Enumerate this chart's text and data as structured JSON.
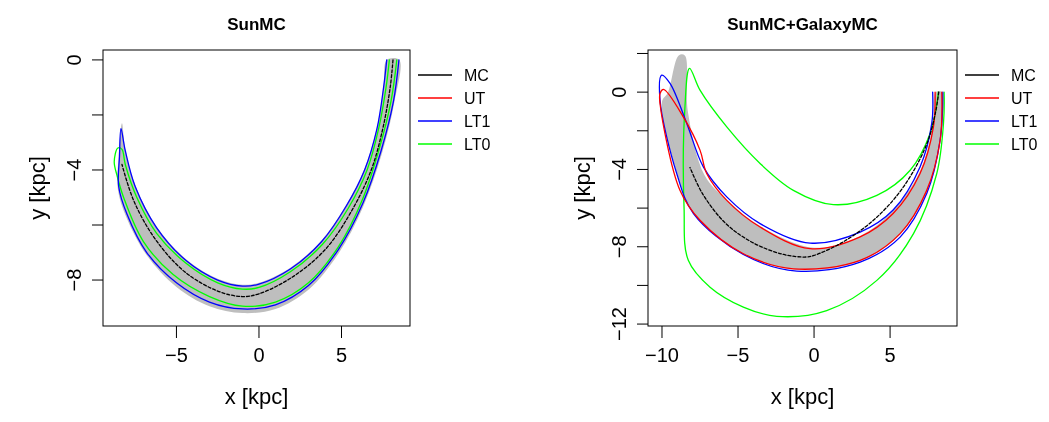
{
  "chart_data": [
    {
      "type": "line",
      "title": "SunMC",
      "xlabel": "x [kpc]",
      "ylabel": "y [kpc]",
      "xlim": [
        -9.45,
        9.15
      ],
      "ylim": [
        -9.67,
        0.36
      ],
      "xticks": [
        -5,
        0,
        5
      ],
      "yticks": [
        0,
        {
          "value": -2,
          "label": null
        },
        -4,
        {
          "value": -6,
          "label": null
        },
        -8
      ],
      "legend": "top right",
      "series": [
        {
          "type": "area",
          "color": "#bebebe",
          "x": [
            7.74,
            7.55,
            7.15,
            6.4,
            5.3,
            3.8,
            1.9,
            0,
            -1,
            -2.5,
            -4.4,
            -6.2,
            -7.5,
            -8.1,
            -8.3,
            -8.5,
            -8.55,
            -8.05,
            -6.8,
            -5.0,
            -3,
            -1,
            1,
            3,
            4.8,
            6.3,
            7.45,
            8.2,
            8.5
          ],
          "values": [
            0,
            -0.95,
            -2.45,
            -3.95,
            -5.25,
            -6.55,
            -7.55,
            -8.1,
            -8.17,
            -7.95,
            -7.25,
            -6.05,
            -4.55,
            -3.25,
            -2.3,
            -3.5,
            -4.7,
            -5.7,
            -7.1,
            -8.25,
            -8.95,
            -9.2,
            -9.05,
            -8.35,
            -7.05,
            -5.35,
            -3.4,
            -1.55,
            0
          ]
        },
        {
          "name": "MC",
          "color": "#000000",
          "line_style": "dashed",
          "x": [
            8.12,
            7.95,
            7.5,
            6.8,
            5.6,
            4,
            2,
            0,
            -1,
            -2.5,
            -4.5,
            -6.3,
            -7.6,
            -8.3
          ],
          "values": [
            0,
            -1,
            -2.5,
            -4,
            -5.5,
            -6.9,
            -7.9,
            -8.5,
            -8.6,
            -8.4,
            -7.7,
            -6.5,
            -5.1,
            -3.8
          ]
        },
        {
          "name": "UT",
          "color": "#ff0000"
        },
        {
          "name": "LT1",
          "color": "#0000ff",
          "x": [
            7.74,
            7.55,
            7.15,
            6.4,
            5.3,
            3.8,
            1.9,
            0,
            -1,
            -2.5,
            -4.4,
            -6.2,
            -7.5,
            -8.1,
            -8.36,
            -8.45,
            -8.5,
            -8.0,
            -6.8,
            -5.0,
            -3,
            -1,
            1,
            3,
            4.8,
            6.3,
            7.4,
            8.15,
            8.48
          ],
          "values": [
            0,
            -1,
            -2.5,
            -4,
            -5.3,
            -6.6,
            -7.6,
            -8.15,
            -8.22,
            -8.0,
            -7.3,
            -6.1,
            -4.6,
            -3.3,
            -2.5,
            -3.5,
            -4.6,
            -5.6,
            -7.0,
            -8.1,
            -8.8,
            -9.05,
            -8.9,
            -8.2,
            -6.9,
            -5.2,
            -3.3,
            -1.5,
            0
          ]
        },
        {
          "name": "LT0",
          "color": "#00ff00",
          "x": [
            7.9,
            7.7,
            7.25,
            6.55,
            5.4,
            3.85,
            1.9,
            0,
            -1,
            -2.5,
            -4.4,
            -6.2,
            -7.4,
            -8.1,
            -8.3,
            -8.55,
            -8.77,
            -8.6,
            -8.2,
            -7.0,
            -5.2,
            -3,
            -1,
            1,
            3,
            4.8,
            6.25,
            7.3,
            8.0,
            8.35
          ],
          "values": [
            0,
            -1,
            -2.5,
            -4,
            -5.4,
            -6.7,
            -7.7,
            -8.27,
            -8.33,
            -8.1,
            -7.4,
            -6.3,
            -5.0,
            -3.8,
            -3.25,
            -3.2,
            -3.7,
            -4.2,
            -5.0,
            -6.6,
            -7.8,
            -8.6,
            -8.95,
            -8.8,
            -8.1,
            -6.8,
            -5.1,
            -3.2,
            -1.5,
            0
          ]
        }
      ]
    },
    {
      "type": "line",
      "title": "SunMC+GalaxyMC",
      "xlabel": "x [kpc]",
      "ylabel": "y [kpc]",
      "xlim": [
        -10.92,
        9.4
      ],
      "ylim": [
        -12.1,
        2.18
      ],
      "xticks": [
        -10,
        -5,
        0,
        5
      ],
      "yticks": [
        {
          "value": 2,
          "label": null
        },
        0,
        {
          "value": -2,
          "label": null
        },
        -4,
        {
          "value": -6,
          "label": null
        },
        -8,
        {
          "value": -10,
          "label": null
        },
        -12
      ],
      "legend": "top right",
      "series": [
        {
          "type": "area",
          "color": "#bebebe",
          "x": [
            8.0,
            7.8,
            6.9,
            5.1,
            3,
            0,
            -3.5,
            -5.7,
            -7.2,
            -8.3,
            -8.5,
            -8.9,
            -9.6,
            -10.0,
            -9.0,
            -7.9,
            -4.6,
            -1.1,
            3,
            5.6,
            7.4,
            8.3,
            8.4
          ],
          "values": [
            0,
            -1.8,
            -4.2,
            -6.2,
            -7.45,
            -8.05,
            -6.95,
            -5.6,
            -4.3,
            -1,
            1.9,
            1.9,
            0,
            -0.5,
            -4.2,
            -6.3,
            -8.4,
            -9.2,
            -8.75,
            -7.4,
            -5.2,
            -2.5,
            0
          ]
        },
        {
          "name": "MC",
          "color": "#000000",
          "line_style": "dashed",
          "x": [
            8.2,
            8.0,
            7.5,
            6.6,
            5.4,
            3.8,
            1.8,
            0,
            -0.5,
            -2,
            -4,
            -5.8,
            -7.3,
            -8.16
          ],
          "values": [
            0,
            -1,
            -2.5,
            -4,
            -5.4,
            -6.7,
            -7.8,
            -8.45,
            -8.53,
            -8.4,
            -7.8,
            -6.8,
            -5.3,
            -3.9
          ]
        },
        {
          "name": "UT",
          "color": "#ff0000",
          "x": [
            7.96,
            7.85,
            6.97,
            5.2,
            3.03,
            -0.26,
            -3.55,
            -5.74,
            -7.06,
            -7.5,
            -8.6,
            -9.9,
            -10.13,
            -10.13,
            -8.82,
            -7.5,
            -4.65,
            -1.36,
            3.03,
            5.66,
            7.41,
            8.29,
            8.4
          ],
          "values": [
            0,
            -1.8,
            -4.21,
            -6.28,
            -7.49,
            -8.1,
            -6.98,
            -5.6,
            -4.21,
            -3.0,
            -1.28,
            0.14,
            -0.07,
            -0.59,
            -5.08,
            -6.63,
            -8.36,
            -9.14,
            -8.7,
            -7.32,
            -5.08,
            -2.49,
            0
          ]
        },
        {
          "name": "LT1",
          "color": "#0000ff",
          "x": [
            7.8,
            7.74,
            6.97,
            5.2,
            3.03,
            -0.26,
            -3.55,
            -5.74,
            -7.28,
            -8.37,
            -9.47,
            -10.02,
            -10.13,
            -9.03,
            -7.93,
            -4.65,
            -1.14,
            3.03,
            5.66,
            7.41,
            8.29,
            8.47
          ],
          "values": [
            0,
            -1.62,
            -3.87,
            -6.1,
            -7.24,
            -7.81,
            -6.8,
            -5.42,
            -3.87,
            -1.62,
            0.45,
            0.88,
            -0.41,
            -4.21,
            -6.28,
            -8.4,
            -9.26,
            -8.79,
            -7.5,
            -5.25,
            -2.49,
            0
          ]
        },
        {
          "name": "LT0",
          "color": "#00ff00",
          "x": [
            8.18,
            7.63,
            6.32,
            4.13,
            1.27,
            -1.36,
            -3.55,
            -5.74,
            -7.5,
            -8.19,
            -8.49,
            -8.55,
            -8.27,
            -6.84,
            -4.65,
            -2.45,
            0.83,
            4.13,
            6.54,
            8.07,
            8.51,
            8.55
          ],
          "values": [
            0,
            -2.14,
            -4.04,
            -5.34,
            -5.82,
            -5.08,
            -3.69,
            -1.8,
            0.1,
            1.23,
            -0.76,
            -5.94,
            -8.7,
            -10.09,
            -11.12,
            -11.6,
            -11.3,
            -9.74,
            -7.32,
            -4.21,
            -1.62,
            0
          ]
        }
      ]
    }
  ]
}
